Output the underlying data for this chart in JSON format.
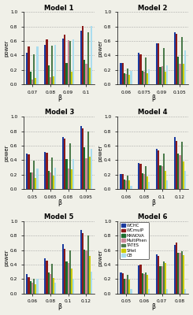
{
  "models": [
    "Model 1",
    "Model 2",
    "Model 3",
    "Model 4",
    "Model 5",
    "Model 6"
  ],
  "x_labels": [
    [
      "0.07",
      "0.08",
      "0.09",
      "0.1"
    ],
    [
      "0.06",
      "0.075",
      "0.09",
      "0.105"
    ],
    [
      "0.05",
      "0.065",
      "0.08",
      "0.095"
    ],
    [
      "0.06",
      "0.08",
      "0.1",
      "0.12"
    ],
    [
      "0.06",
      "0.08",
      "0.1",
      "0.12"
    ],
    [
      "0.05",
      "0.06",
      "0.07",
      "0.08"
    ]
  ],
  "series_names": [
    "WCHC",
    "WCmuIP",
    "MANOVA",
    "MultiPhen",
    "TATES",
    "SHet",
    "OB"
  ],
  "colors": [
    "#1a3a9e",
    "#8b1a1a",
    "#1a6e2e",
    "#cc8899",
    "#4a7a4a",
    "#cccc00",
    "#aaddee"
  ],
  "data": [
    [
      [
        0.44,
        0.52,
        0.18,
        0.07,
        0.42,
        0.09,
        0.52
      ],
      [
        0.55,
        0.62,
        0.26,
        0.1,
        0.53,
        0.11,
        0.55
      ],
      [
        0.63,
        0.69,
        0.29,
        0.61,
        0.6,
        0.18,
        0.62
      ],
      [
        0.74,
        0.81,
        0.34,
        0.28,
        0.72,
        0.23,
        0.81
      ]
    ],
    [
      [
        0.29,
        0.29,
        0.15,
        0.14,
        0.22,
        0.13,
        0.19
      ],
      [
        0.44,
        0.42,
        0.19,
        0.18,
        0.37,
        0.15,
        0.21
      ],
      [
        0.57,
        0.57,
        0.24,
        0.25,
        0.5,
        0.17,
        0.26
      ],
      [
        0.72,
        0.7,
        0.38,
        0.28,
        0.65,
        0.28,
        0.47
      ]
    ],
    [
      [
        0.49,
        0.48,
        0.23,
        0.23,
        0.39,
        0.15,
        0.28
      ],
      [
        0.51,
        0.5,
        0.25,
        0.23,
        0.43,
        0.18,
        0.29
      ],
      [
        0.72,
        0.7,
        0.41,
        0.28,
        0.63,
        0.27,
        0.41
      ],
      [
        0.87,
        0.84,
        0.58,
        0.42,
        0.8,
        0.45,
        0.56
      ]
    ],
    [
      [
        0.21,
        0.21,
        0.13,
        0.12,
        0.19,
        0.12,
        0.04
      ],
      [
        0.36,
        0.35,
        0.22,
        0.21,
        0.32,
        0.17,
        0.1
      ],
      [
        0.55,
        0.53,
        0.33,
        0.31,
        0.49,
        0.25,
        0.12
      ],
      [
        0.72,
        0.66,
        0.49,
        0.47,
        0.65,
        0.38,
        0.25
      ]
    ],
    [
      [
        0.27,
        0.23,
        0.17,
        0.15,
        0.2,
        0.13,
        0.2
      ],
      [
        0.49,
        0.46,
        0.29,
        0.27,
        0.41,
        0.22,
        0.15
      ],
      [
        0.69,
        0.62,
        0.44,
        0.42,
        0.6,
        0.35,
        0.21
      ],
      [
        0.88,
        0.84,
        0.61,
        0.6,
        0.81,
        0.52,
        0.3
      ]
    ],
    [
      [
        0.29,
        0.28,
        0.21,
        0.2,
        0.26,
        0.19,
        0.06
      ],
      [
        0.39,
        0.4,
        0.28,
        0.27,
        0.29,
        0.26,
        0.06
      ],
      [
        0.54,
        0.52,
        0.38,
        0.38,
        0.44,
        0.42,
        0.06
      ],
      [
        0.67,
        0.71,
        0.57,
        0.57,
        0.59,
        0.53,
        0.06
      ]
    ]
  ],
  "ylim": [
    0,
    1.0
  ],
  "yticks": [
    0.0,
    0.2,
    0.4,
    0.6,
    0.8,
    1.0
  ],
  "ylabel": "power",
  "xlabel": "β",
  "background_color": "#f0f0e8",
  "grid_color": "#999999"
}
